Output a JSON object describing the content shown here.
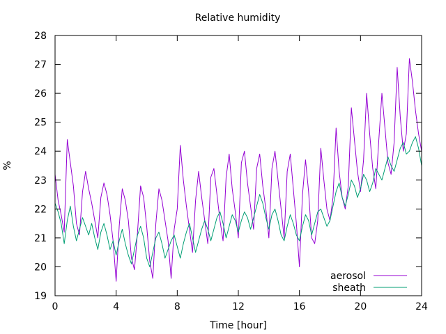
{
  "chart_data": {
    "type": "line",
    "title": "Relative humidity",
    "xlabel": "Time [hour]",
    "ylabel": "%",
    "xlim": [
      0,
      24
    ],
    "ylim": [
      19,
      28
    ],
    "xticks": [
      0,
      4,
      8,
      12,
      16,
      20,
      24
    ],
    "yticks": [
      19,
      20,
      21,
      22,
      23,
      24,
      25,
      26,
      27,
      28
    ],
    "grid": false,
    "legend_position": "bottom-right",
    "series": [
      {
        "name": "aerosol",
        "color": "#9400d3",
        "x": [
          0.0,
          0.2,
          0.4,
          0.6,
          0.8,
          1.0,
          1.2,
          1.4,
          1.6,
          1.8,
          2.0,
          2.2,
          2.4,
          2.6,
          2.8,
          3.0,
          3.2,
          3.4,
          3.6,
          3.8,
          4.0,
          4.2,
          4.4,
          4.6,
          4.8,
          5.0,
          5.2,
          5.4,
          5.6,
          5.8,
          6.0,
          6.2,
          6.4,
          6.6,
          6.8,
          7.0,
          7.2,
          7.4,
          7.6,
          7.8,
          8.0,
          8.2,
          8.4,
          8.6,
          8.8,
          9.0,
          9.2,
          9.4,
          9.6,
          9.8,
          10.0,
          10.2,
          10.4,
          10.6,
          10.8,
          11.0,
          11.2,
          11.4,
          11.6,
          11.8,
          12.0,
          12.2,
          12.4,
          12.6,
          12.8,
          13.0,
          13.2,
          13.4,
          13.6,
          13.8,
          14.0,
          14.2,
          14.4,
          14.6,
          14.8,
          15.0,
          15.2,
          15.4,
          15.6,
          15.8,
          16.0,
          16.2,
          16.4,
          16.6,
          16.8,
          17.0,
          17.2,
          17.4,
          17.6,
          17.8,
          18.0,
          18.2,
          18.4,
          18.6,
          18.8,
          19.0,
          19.2,
          19.4,
          19.6,
          19.8,
          20.0,
          20.2,
          20.4,
          20.6,
          20.8,
          21.0,
          21.2,
          21.4,
          21.6,
          21.8,
          22.0,
          22.2,
          22.4,
          22.6,
          22.8,
          23.0,
          23.2,
          23.4,
          23.6,
          23.8,
          24.0
        ],
        "y": [
          23.2,
          22.3,
          21.8,
          21.2,
          24.4,
          23.6,
          22.8,
          21.5,
          21.1,
          22.6,
          23.3,
          22.7,
          22.2,
          21.6,
          21.0,
          22.4,
          22.9,
          22.5,
          21.8,
          20.9,
          19.5,
          21.4,
          22.7,
          22.3,
          21.6,
          20.3,
          19.9,
          21.2,
          22.8,
          22.4,
          21.4,
          20.2,
          19.6,
          21.5,
          22.7,
          22.3,
          21.6,
          20.9,
          19.6,
          21.3,
          22.0,
          24.2,
          23.0,
          22.1,
          21.3,
          20.5,
          22.3,
          23.3,
          22.4,
          21.6,
          20.8,
          23.1,
          23.4,
          22.5,
          21.6,
          20.9,
          23.1,
          23.9,
          22.7,
          21.9,
          21.0,
          23.6,
          24.0,
          22.9,
          22.1,
          21.3,
          23.4,
          23.9,
          22.8,
          22.0,
          21.0,
          23.4,
          24.0,
          23.0,
          22.0,
          21.0,
          23.3,
          23.9,
          22.7,
          21.5,
          20.0,
          22.5,
          23.7,
          22.6,
          21.0,
          20.8,
          21.6,
          24.1,
          23.0,
          22.0,
          21.6,
          22.4,
          24.8,
          23.3,
          22.4,
          22.0,
          22.8,
          25.5,
          24.4,
          23.3,
          22.6,
          23.7,
          26.0,
          24.6,
          23.4,
          22.7,
          24.4,
          26.0,
          24.8,
          23.6,
          23.2,
          24.3,
          26.9,
          25.2,
          24.0,
          24.6,
          27.2,
          26.4,
          25.4,
          24.6,
          24.0
        ]
      },
      {
        "name": "sheath",
        "color": "#009e73",
        "x": [
          0.0,
          0.2,
          0.4,
          0.6,
          0.8,
          1.0,
          1.2,
          1.4,
          1.6,
          1.8,
          2.0,
          2.2,
          2.4,
          2.6,
          2.8,
          3.0,
          3.2,
          3.4,
          3.6,
          3.8,
          4.0,
          4.2,
          4.4,
          4.6,
          4.8,
          5.0,
          5.2,
          5.4,
          5.6,
          5.8,
          6.0,
          6.2,
          6.4,
          6.6,
          6.8,
          7.0,
          7.2,
          7.4,
          7.6,
          7.8,
          8.0,
          8.2,
          8.4,
          8.6,
          8.8,
          9.0,
          9.2,
          9.4,
          9.6,
          9.8,
          10.0,
          10.2,
          10.4,
          10.6,
          10.8,
          11.0,
          11.2,
          11.4,
          11.6,
          11.8,
          12.0,
          12.2,
          12.4,
          12.6,
          12.8,
          13.0,
          13.2,
          13.4,
          13.6,
          13.8,
          14.0,
          14.2,
          14.4,
          14.6,
          14.8,
          15.0,
          15.2,
          15.4,
          15.6,
          15.8,
          16.0,
          16.2,
          16.4,
          16.6,
          16.8,
          17.0,
          17.2,
          17.4,
          17.6,
          17.8,
          18.0,
          18.2,
          18.4,
          18.6,
          18.8,
          19.0,
          19.2,
          19.4,
          19.6,
          19.8,
          20.0,
          20.2,
          20.4,
          20.6,
          20.8,
          21.0,
          21.2,
          21.4,
          21.6,
          21.8,
          22.0,
          22.2,
          22.4,
          22.6,
          22.8,
          23.0,
          23.2,
          23.4,
          23.6,
          23.8,
          24.0
        ],
        "y": [
          22.2,
          21.9,
          21.5,
          20.8,
          21.6,
          22.1,
          21.4,
          20.9,
          21.3,
          21.7,
          21.4,
          21.1,
          21.5,
          21.0,
          20.6,
          21.2,
          21.5,
          21.1,
          20.6,
          20.9,
          20.4,
          20.9,
          21.3,
          20.8,
          20.4,
          20.1,
          20.6,
          21.1,
          21.4,
          21.0,
          20.3,
          20.0,
          20.5,
          21.0,
          21.2,
          20.8,
          20.3,
          20.6,
          20.9,
          21.1,
          20.7,
          20.3,
          20.8,
          21.2,
          21.5,
          21.0,
          20.5,
          20.9,
          21.3,
          21.6,
          21.3,
          20.9,
          21.3,
          21.7,
          21.9,
          21.5,
          21.0,
          21.4,
          21.8,
          21.6,
          21.2,
          21.6,
          21.9,
          21.7,
          21.3,
          21.7,
          22.1,
          22.5,
          22.2,
          21.7,
          21.3,
          21.8,
          22.0,
          21.6,
          21.1,
          20.9,
          21.4,
          21.8,
          21.5,
          21.1,
          20.9,
          21.4,
          21.8,
          21.6,
          21.1,
          21.5,
          21.9,
          22.0,
          21.7,
          21.4,
          21.6,
          22.1,
          22.6,
          22.9,
          22.4,
          22.1,
          22.5,
          23.0,
          22.8,
          22.4,
          22.7,
          23.2,
          23.0,
          22.6,
          22.9,
          23.4,
          23.2,
          23.0,
          23.4,
          23.8,
          23.5,
          23.3,
          23.7,
          24.1,
          24.3,
          23.9,
          24.0,
          24.3,
          24.5,
          24.1,
          23.5
        ]
      }
    ]
  }
}
